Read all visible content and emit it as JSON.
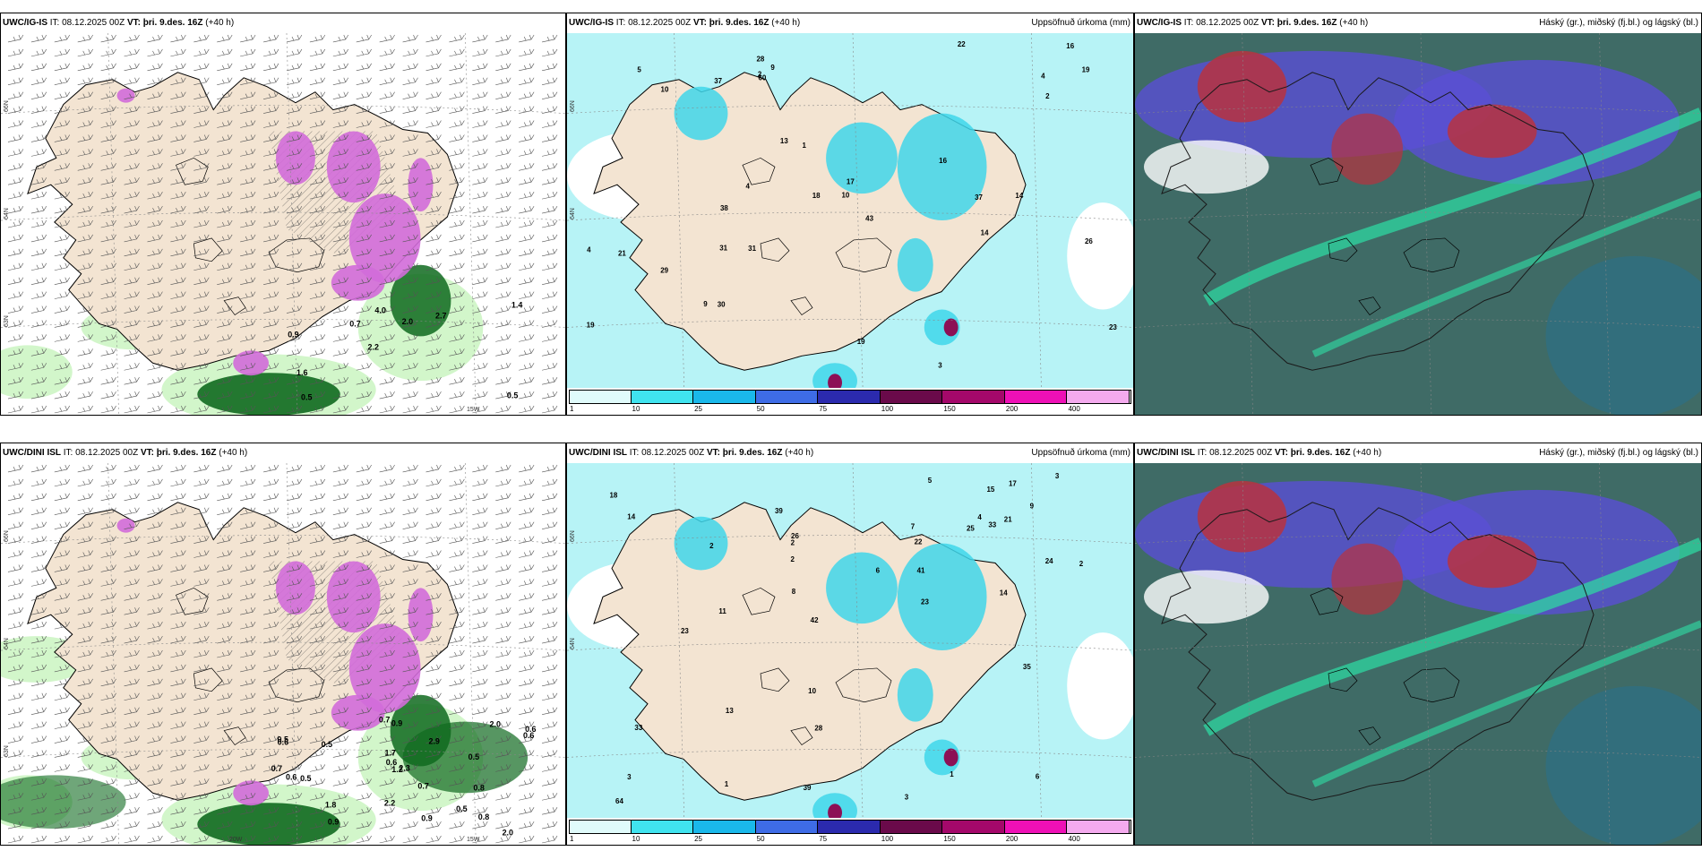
{
  "panels": [
    {
      "model": "UWC/IG-IS",
      "it_label": "IT: 08.12.2025 00Z",
      "vt_label": "VT: þri. 9.des. 16Z",
      "lead": "(+40 h)",
      "right_title": "",
      "kind": "snow",
      "lat_labels": [
        "66N",
        "64N",
        "63N"
      ],
      "lon_labels": [
        "15W"
      ],
      "values": [
        "0.5",
        "0.9",
        "1.4",
        "2.2",
        "2.7",
        "0.5",
        "4.0",
        "2.0",
        "1.6",
        "0.7"
      ]
    },
    {
      "model": "UWC/IG-IS",
      "it_label": "IT: 08.12.2025 00Z",
      "vt_label": "VT: þri. 9.des. 16Z",
      "lead": "(+40 h)",
      "right_title": "Uppsöfnuð úrkoma (mm)",
      "kind": "precip",
      "lat_labels": [
        "66N",
        "64N"
      ],
      "lon_labels": [],
      "values": [
        "10",
        "4",
        "5",
        "4",
        "3",
        "2",
        "19",
        "23",
        "14",
        "16",
        "31",
        "21",
        "13",
        "26",
        "29",
        "22",
        "37",
        "28",
        "38",
        "43",
        "19",
        "9",
        "10",
        "60",
        "2",
        "1",
        "14",
        "19",
        "16",
        "37",
        "30",
        "31",
        "18",
        "4",
        "17",
        "9"
      ]
    },
    {
      "model": "UWC/IG-IS",
      "it_label": "IT: 08.12.2025 00Z",
      "vt_label": "VT: þri. 9.des. 16Z",
      "lead": "(+40 h)",
      "right_title": "Háský (gr.), miðský (fj.bl.) og lágský (bl.)",
      "kind": "cloud",
      "lat_labels": [],
      "lon_labels": [],
      "values": []
    },
    {
      "model": "UWC/DINI ISL",
      "it_label": "IT: 08.12.2025 00Z",
      "vt_label": "VT: þri. 9.des. 16Z",
      "lead": "(+40 h)",
      "right_title": "",
      "kind": "snow",
      "lat_labels": [
        "66N",
        "64N",
        "63N"
      ],
      "lon_labels": [
        "20W",
        "15W"
      ],
      "values": [
        "0.7",
        "0.9",
        "0.5",
        "0.6",
        "0.5",
        "2.0",
        "0.5",
        "2.9",
        "1.7",
        "2.0",
        "2.3",
        "0.8",
        "0.7",
        "0.6",
        "0.5",
        "1.8",
        "0.9",
        "0.6",
        "0.7",
        "2.2",
        "0.5",
        "0.8",
        "0.6",
        "0.6",
        "0.9",
        "1.2"
      ]
    },
    {
      "model": "UWC/DINI ISL",
      "it_label": "IT: 08.12.2025 00Z",
      "vt_label": "VT: þri. 9.des. 16Z",
      "lead": "(+40 h)",
      "right_title": "Uppsöfnuð úrkoma (mm)",
      "kind": "precip",
      "lat_labels": [
        "66N",
        "64N"
      ],
      "lon_labels": [],
      "values": [
        "3",
        "2",
        "2",
        "3",
        "3",
        "22",
        "25",
        "33",
        "14",
        "28",
        "33",
        "23",
        "39",
        "42",
        "41",
        "35",
        "39",
        "26",
        "23",
        "64",
        "11",
        "4",
        "1",
        "6",
        "6",
        "5",
        "7",
        "9",
        "13",
        "14",
        "18",
        "24",
        "2",
        "21",
        "17",
        "15",
        "10",
        "8",
        "2",
        "1"
      ]
    },
    {
      "model": "UWC/DINI ISL",
      "it_label": "IT: 08.12.2025 00Z",
      "vt_label": "VT: þri. 9.des. 16Z",
      "lead": "(+40 h)",
      "right_title": "Háský (gr.), miðský (fj.bl.) og lágský (bl.)",
      "kind": "cloud",
      "lat_labels": [],
      "lon_labels": [],
      "values": []
    }
  ],
  "colorbar": {
    "ticks": [
      "1",
      "10",
      "25",
      "50",
      "75",
      "100",
      "150",
      "200",
      "400"
    ],
    "colors": [
      "#e0fbfb",
      "#40e3ef",
      "#1ab8ea",
      "#3e6ce6",
      "#2b2aae",
      "#6a0a4a",
      "#a4086a",
      "#ee10b6",
      "#f4aaee"
    ]
  },
  "colors": {
    "land": "#f3e4d2",
    "snow_pink": "#d26cd9",
    "green_dark": "#0f6a1f",
    "green_light": "#cdf5c4",
    "precip_light": "#b7f3f6",
    "precip_mid": "#3fd6ea",
    "precip_dark": "#8c1056",
    "cloud_bg": "#3f6b66",
    "cloud_red": "#b8323f",
    "cloud_blue": "#5a4fd4",
    "cloud_green": "#2fd7a1"
  }
}
